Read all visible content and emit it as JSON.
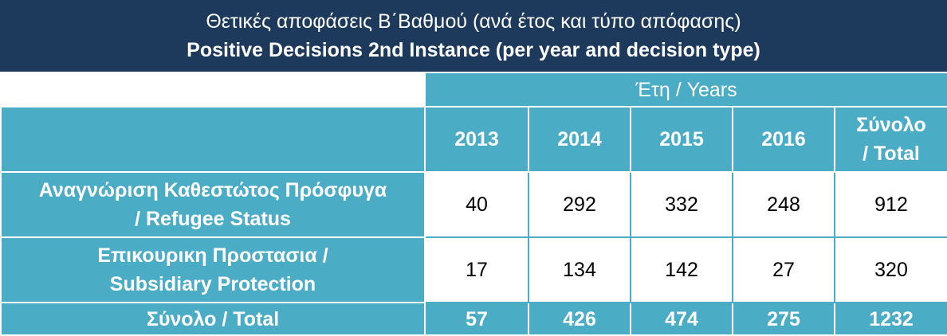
{
  "header": {
    "title": [
      "Θετικές αποφάσεις Β΄Βαθμού (ανά έτος και τύπο απόφασης)",
      "Positive Decisions 2nd Instance (per year and decision type)"
    ]
  },
  "table": {
    "group_header": "Έτη / Years",
    "columns": [
      [
        "2013"
      ],
      [
        "2014"
      ],
      [
        "2015"
      ],
      [
        "2016"
      ],
      [
        "Σύνολο",
        "/ Total"
      ]
    ],
    "rows": [
      {
        "label": [
          "Αναγνώριση Καθεστώτος Πρόσφυγα",
          "/ Refugee Status"
        ],
        "values": [
          40,
          292,
          332,
          248,
          912
        ]
      },
      {
        "label": [
          "Επικουρικη Προστασια /",
          "Subsidiary Protection"
        ],
        "values": [
          17,
          134,
          142,
          27,
          320
        ]
      }
    ],
    "total": {
      "label": [
        "Σύνολο / Total"
      ],
      "values": [
        57,
        426,
        474,
        275,
        1232
      ]
    }
  }
}
